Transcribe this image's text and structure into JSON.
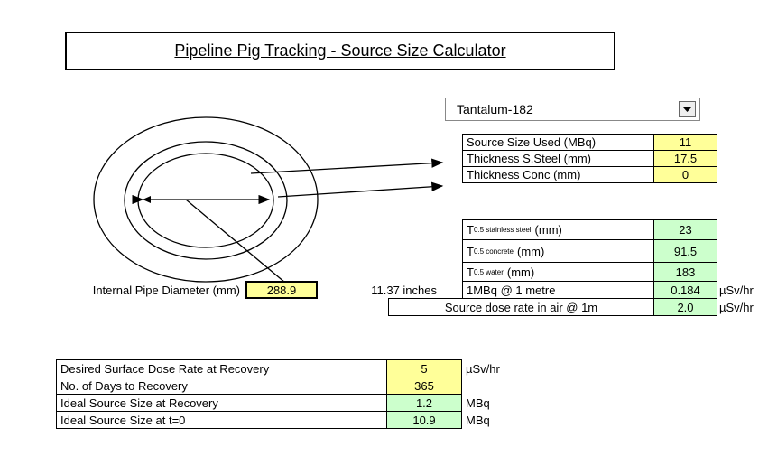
{
  "header": {
    "title": "Pipeline Pig Tracking - Source Size Calculator"
  },
  "dropdown": {
    "selected": "Tantalum-182"
  },
  "source_table": {
    "rows": [
      {
        "label": "Source Size Used (MBq)",
        "value": "11"
      },
      {
        "label": "Thickness S.Steel (mm)",
        "value": "17.5"
      },
      {
        "label": "Thickness Conc (mm)",
        "value": "0"
      }
    ]
  },
  "half_table": {
    "rows": [
      {
        "symbol": "T",
        "subscript": "0.5 stainless steel",
        "suffix": "(mm)",
        "value": "23"
      },
      {
        "symbol": "T",
        "subscript": "0.5 concrete",
        "suffix": "(mm)",
        "value": "91.5"
      },
      {
        "symbol": "T",
        "subscript": "0.5 water",
        "suffix": "(mm)",
        "value": "183"
      },
      {
        "label": "1MBq @ 1 metre",
        "value": "0.184",
        "unit": "µSv/hr"
      }
    ]
  },
  "dose_row": {
    "label": "Source dose rate in air @ 1m",
    "value": "2.0",
    "unit": "µSv/hr"
  },
  "pipe": {
    "label": "Internal Pipe Diameter (mm)",
    "value": "288.9",
    "inches": "11.37 inches"
  },
  "recovery_table": {
    "rows": [
      {
        "label": "Desired Surface Dose Rate at Recovery",
        "value": "5",
        "unit": "µSv/hr"
      },
      {
        "label": "No. of Days to Recovery",
        "value": "365"
      },
      {
        "label": "Ideal Source Size at Recovery",
        "value": "1.2",
        "unit": "MBq"
      },
      {
        "label": "Ideal Source Size at t=0",
        "value": "10.9",
        "unit": "MBq"
      }
    ]
  }
}
